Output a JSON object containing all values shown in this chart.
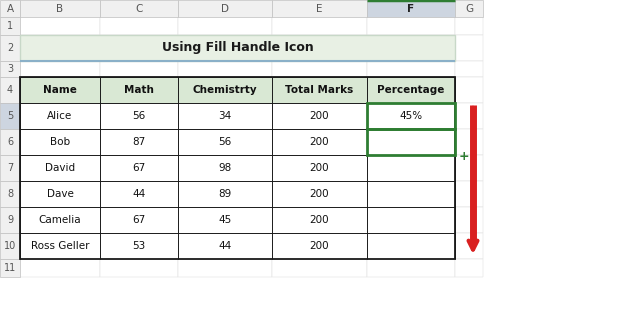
{
  "title": "Using Fill Handle Icon",
  "col_headers": [
    "Name",
    "Math",
    "Chemistrty",
    "Total Marks",
    "Percentage"
  ],
  "rows": [
    [
      "Alice",
      "56",
      "34",
      "200",
      "45%"
    ],
    [
      "Bob",
      "87",
      "56",
      "200",
      ""
    ],
    [
      "David",
      "67",
      "98",
      "200",
      ""
    ],
    [
      "Dave",
      "44",
      "89",
      "200",
      ""
    ],
    [
      "Camelia",
      "67",
      "45",
      "200",
      ""
    ],
    [
      "Ross Geller",
      "53",
      "44",
      "200",
      ""
    ]
  ],
  "col_letters": [
    "A",
    "B",
    "C",
    "D",
    "E",
    "F",
    "G"
  ],
  "title_bg": "#e8f0e4",
  "title_border_color": "#9ab8c8",
  "header_row_bg": "#d9e8d4",
  "col_header_bg": "#f0f0f0",
  "selected_col_bg": "#cdd5e0",
  "selected_col_border": "#2e7d32",
  "percentage_cell_border": "#2e7d32",
  "arrow_color": "#d92020",
  "plus_sign_color": "#2e7d32",
  "table_border_color": "#1a1a1a",
  "figsize": [
    6.27,
    3.14
  ],
  "dpi": 100
}
